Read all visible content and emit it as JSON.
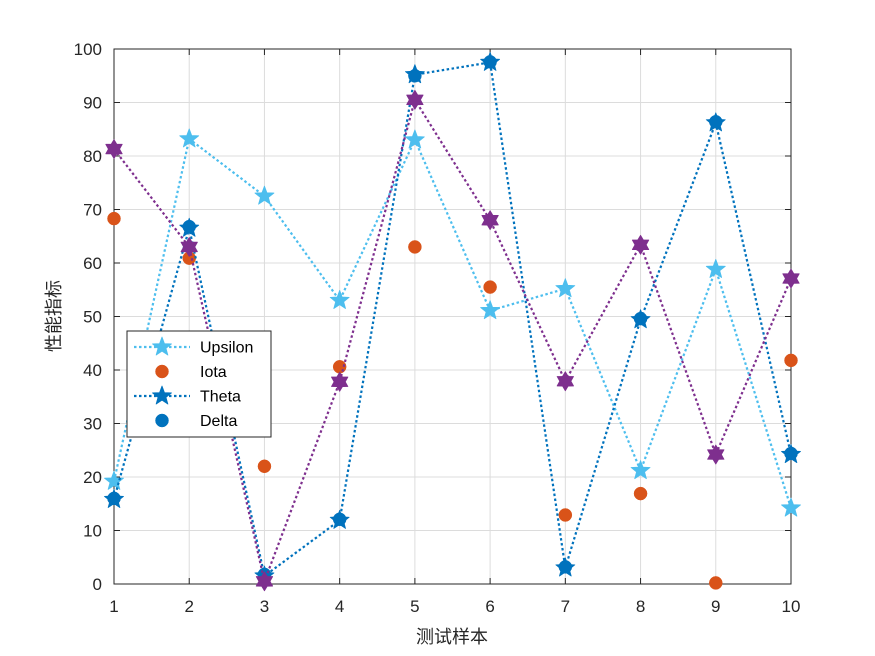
{
  "chart_data": {
    "type": "line",
    "xlabel": "测试样本",
    "ylabel": "性能指标",
    "xlim": [
      1,
      10
    ],
    "ylim": [
      0,
      100
    ],
    "xticks": [
      1,
      2,
      3,
      4,
      5,
      6,
      7,
      8,
      9,
      10
    ],
    "yticks": [
      0,
      10,
      20,
      30,
      40,
      50,
      60,
      70,
      80,
      90,
      100
    ],
    "grid": true,
    "legend_position": "middle-left",
    "x": [
      1,
      2,
      3,
      4,
      5,
      6,
      7,
      8,
      9,
      10
    ],
    "series": [
      {
        "name": "Upsilon",
        "color": "#4DBEEE",
        "line": "dotted",
        "marker": "pentagram",
        "values": [
          19.2,
          83.2,
          72.5,
          53.0,
          83.0,
          51.1,
          55.2,
          21.2,
          58.8,
          14.2
        ]
      },
      {
        "name": "Iota",
        "color": "#D95319",
        "line": "none",
        "marker": "circle",
        "values": [
          68.3,
          60.9,
          22.0,
          40.6,
          63.0,
          55.5,
          12.9,
          16.9,
          0.2,
          41.8
        ]
      },
      {
        "name": "Theta",
        "color": "#0072BD",
        "line": "dotted",
        "marker": "pentagram",
        "values": [
          15.8,
          66.5,
          1.5,
          11.9,
          95.2,
          97.5,
          3.0,
          49.4,
          86.2,
          24.2
        ]
      },
      {
        "name": "Delta",
        "color": "#0072BD",
        "line": "none",
        "marker": "circle",
        "values": [
          16.0,
          66.8,
          1.8,
          12.1,
          95.0,
          97.6,
          3.2,
          49.6,
          86.4,
          24.4
        ]
      },
      {
        "name": "",
        "color": "#7E2F8E",
        "line": "dotted",
        "marker": "hexagram",
        "values": [
          81.3,
          63.0,
          0.5,
          37.8,
          90.5,
          68.0,
          37.9,
          63.4,
          24.2,
          57.1
        ]
      }
    ],
    "legend_order": [
      0,
      1,
      2,
      3
    ]
  }
}
